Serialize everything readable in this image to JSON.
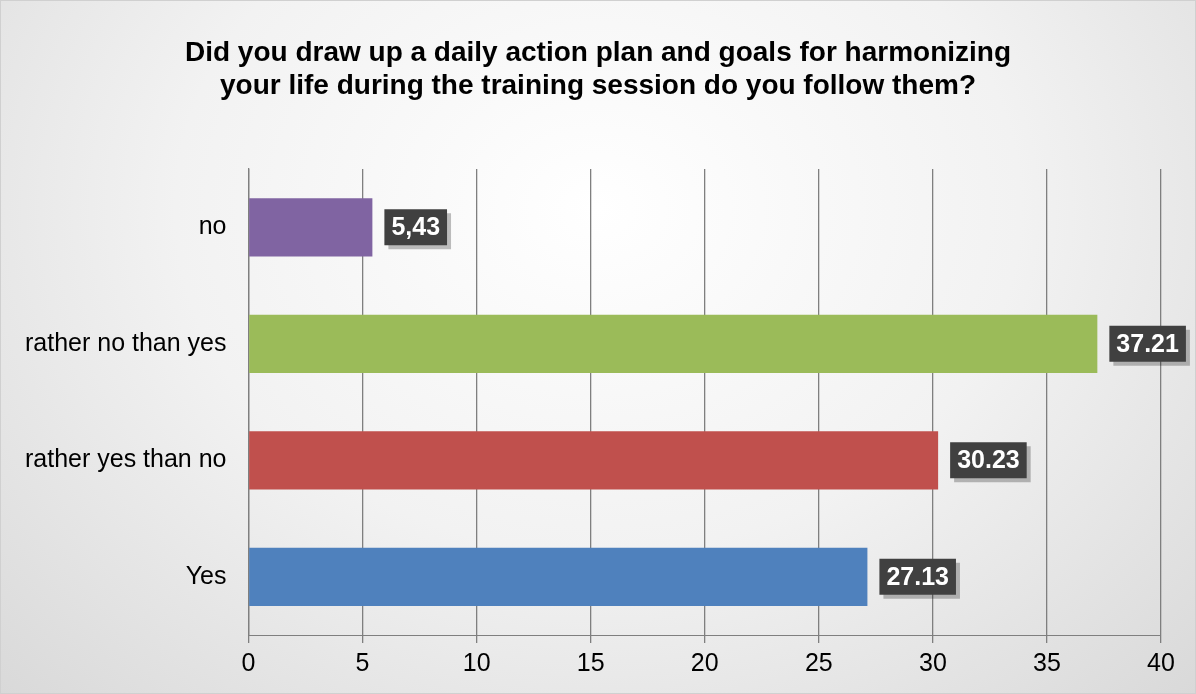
{
  "chart_data": {
    "type": "bar",
    "orientation": "horizontal",
    "title": "Did you draw up a daily action plan and goals for harmonizing your life during the training session do you follow them?",
    "categories": [
      "no",
      "rather no than yes",
      "rather yes than no",
      "Yes"
    ],
    "values": [
      5.43,
      37.21,
      30.23,
      27.13
    ],
    "colors": [
      "#8064a2",
      "#9bbb59",
      "#c0504d",
      "#4f81bd"
    ],
    "value_labels": [
      "5,43",
      "37.21",
      "30.23",
      "27.13"
    ],
    "xlim": [
      0,
      40
    ],
    "xticks": [
      0,
      5,
      10,
      15,
      20,
      25,
      30,
      35,
      40
    ],
    "grid": "x",
    "legend": false
  }
}
